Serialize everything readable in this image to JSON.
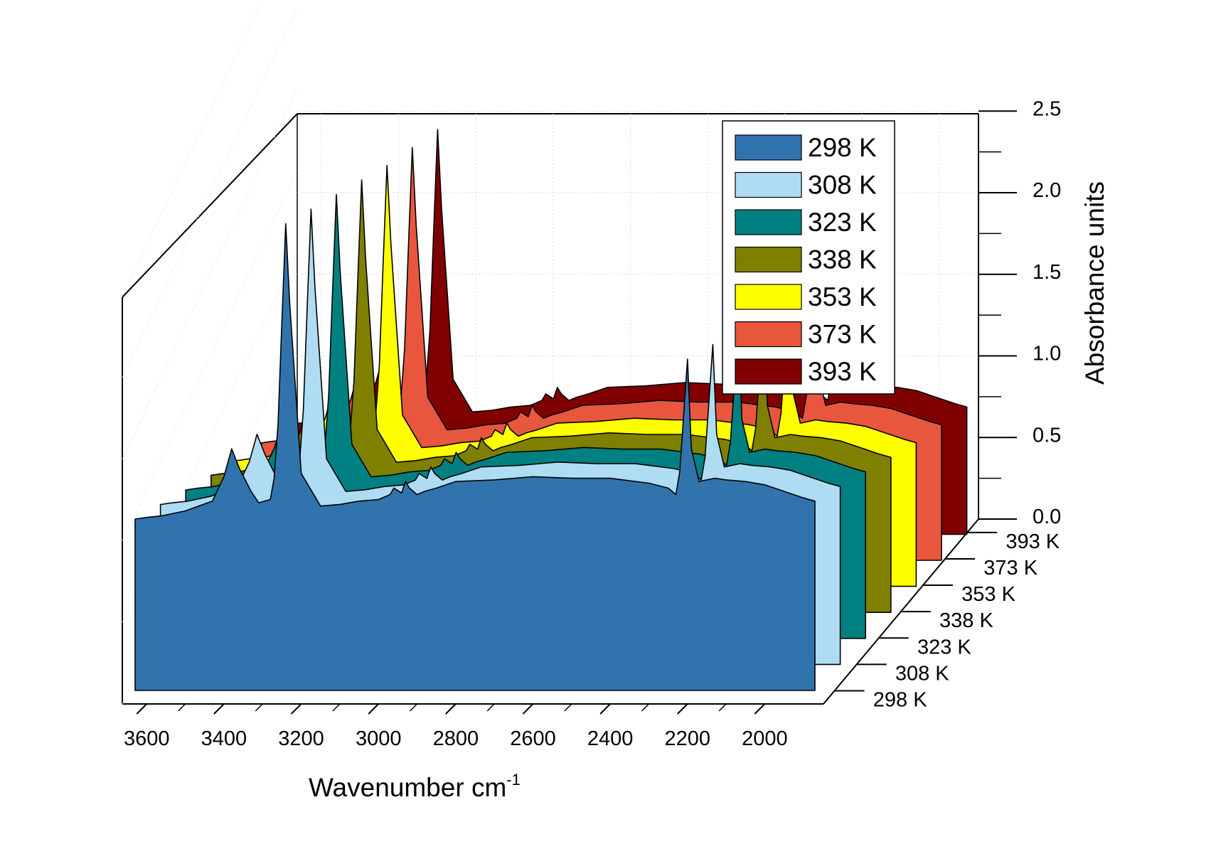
{
  "chart_data": {
    "type": "area",
    "xlabel": "Wavenumber cm",
    "xlabel_sup": "-1",
    "zlabel": "Absorbance units",
    "x_ticks": [
      3600,
      3400,
      3200,
      3000,
      2800,
      2600,
      2400,
      2200,
      2000
    ],
    "x_tick_labels": [
      "3600",
      "3400",
      "3200",
      "3000",
      "2800",
      "2600",
      "2400",
      "2200",
      "2000"
    ],
    "xlim": [
      3630,
      1870
    ],
    "x_reversed": true,
    "z_ticks": [
      0.0,
      0.5,
      1.0,
      1.5,
      2.0,
      2.5
    ],
    "z_tick_labels": [
      "0.0",
      "0.5",
      "1.0",
      "1.5",
      "2.0",
      "2.5"
    ],
    "zlim": [
      0,
      2.5
    ],
    "y_category_labels": [
      "298 K",
      "308 K",
      "323 K",
      "338 K",
      "353 K",
      "373 K",
      "393 K"
    ],
    "legend_position": "top-right",
    "grid": true,
    "series": [
      {
        "name": "298 K",
        "color": "#3174AD",
        "baseline": 0.38,
        "x": [
          3630,
          3600,
          3560,
          3500,
          3430,
          3400,
          3380,
          3360,
          3330,
          3310,
          3280,
          3270,
          3260,
          3250,
          3240,
          3230,
          3200,
          3150,
          3100,
          3050,
          3000,
          2970,
          2960,
          2940,
          2930,
          2920,
          2900,
          2880,
          2850,
          2800,
          2700,
          2600,
          2500,
          2400,
          2300,
          2250,
          2230,
          2220,
          2210,
          2200,
          2190,
          2170,
          2130,
          2100,
          2050,
          2000,
          1950,
          1900,
          1870
        ],
        "values": [
          0.67,
          0.68,
          0.69,
          0.72,
          0.78,
          0.93,
          1.1,
          0.98,
          0.84,
          0.77,
          0.79,
          0.92,
          1.25,
          1.88,
          2.48,
          2.0,
          0.95,
          0.75,
          0.76,
          0.78,
          0.79,
          0.82,
          0.86,
          0.83,
          0.9,
          0.86,
          0.82,
          0.84,
          0.86,
          0.9,
          0.91,
          0.93,
          0.92,
          0.92,
          0.89,
          0.86,
          0.82,
          0.96,
          1.3,
          1.65,
          1.1,
          0.9,
          0.92,
          0.91,
          0.9,
          0.88,
          0.84,
          0.8,
          0.78
        ]
      },
      {
        "name": "308 K",
        "color": "#AEDCF3",
        "baseline": 0.31,
        "x": [
          3630,
          3600,
          3560,
          3500,
          3430,
          3400,
          3380,
          3360,
          3330,
          3310,
          3280,
          3270,
          3260,
          3250,
          3240,
          3230,
          3200,
          3150,
          3100,
          3050,
          3000,
          2970,
          2960,
          2940,
          2930,
          2920,
          2900,
          2880,
          2850,
          2800,
          2700,
          2600,
          2500,
          2400,
          2300,
          2250,
          2230,
          2220,
          2210,
          2200,
          2190,
          2170,
          2130,
          2100,
          2050,
          2000,
          1950,
          1900,
          1870
        ],
        "values": [
          0.67,
          0.68,
          0.69,
          0.72,
          0.78,
          0.93,
          1.1,
          0.98,
          0.84,
          0.77,
          0.79,
          0.92,
          1.25,
          1.88,
          2.48,
          2.0,
          0.95,
          0.75,
          0.76,
          0.78,
          0.79,
          0.82,
          0.86,
          0.83,
          0.9,
          0.86,
          0.82,
          0.84,
          0.86,
          0.9,
          0.91,
          0.93,
          0.92,
          0.92,
          0.89,
          0.86,
          0.82,
          0.96,
          1.3,
          1.65,
          1.1,
          0.9,
          0.92,
          0.91,
          0.9,
          0.88,
          0.84,
          0.8,
          0.78
        ]
      },
      {
        "name": "323 K",
        "color": "#008080",
        "baseline": 0.24,
        "x": [
          3630,
          3600,
          3560,
          3500,
          3430,
          3400,
          3380,
          3360,
          3330,
          3310,
          3280,
          3270,
          3260,
          3250,
          3240,
          3230,
          3200,
          3150,
          3100,
          3050,
          3000,
          2970,
          2960,
          2940,
          2930,
          2920,
          2900,
          2880,
          2850,
          2800,
          2700,
          2600,
          2500,
          2400,
          2300,
          2250,
          2230,
          2220,
          2210,
          2200,
          2190,
          2170,
          2130,
          2100,
          2050,
          2000,
          1950,
          1900,
          1870
        ],
        "values": [
          0.67,
          0.68,
          0.69,
          0.72,
          0.78,
          0.93,
          1.1,
          0.98,
          0.84,
          0.77,
          0.79,
          0.92,
          1.25,
          1.88,
          2.48,
          2.0,
          0.95,
          0.75,
          0.76,
          0.78,
          0.79,
          0.82,
          0.86,
          0.83,
          0.9,
          0.86,
          0.82,
          0.84,
          0.86,
          0.9,
          0.91,
          0.93,
          0.92,
          0.92,
          0.89,
          0.86,
          0.82,
          0.96,
          1.3,
          1.65,
          1.1,
          0.9,
          0.92,
          0.91,
          0.9,
          0.88,
          0.84,
          0.8,
          0.78
        ]
      },
      {
        "name": "338 K",
        "color": "#808000",
        "baseline": 0.17,
        "x": [
          3630,
          3600,
          3560,
          3500,
          3430,
          3400,
          3380,
          3360,
          3330,
          3310,
          3280,
          3270,
          3260,
          3250,
          3240,
          3230,
          3200,
          3150,
          3100,
          3050,
          3000,
          2970,
          2960,
          2940,
          2930,
          2920,
          2900,
          2880,
          2850,
          2800,
          2700,
          2600,
          2500,
          2400,
          2300,
          2250,
          2230,
          2220,
          2210,
          2200,
          2190,
          2170,
          2130,
          2100,
          2050,
          2000,
          1950,
          1900,
          1870
        ],
        "values": [
          0.67,
          0.68,
          0.69,
          0.72,
          0.78,
          0.93,
          1.1,
          0.98,
          0.84,
          0.77,
          0.79,
          0.92,
          1.25,
          1.88,
          2.48,
          2.0,
          0.95,
          0.75,
          0.76,
          0.78,
          0.79,
          0.82,
          0.86,
          0.83,
          0.9,
          0.86,
          0.82,
          0.84,
          0.86,
          0.9,
          0.91,
          0.93,
          0.92,
          0.92,
          0.89,
          0.86,
          0.82,
          0.96,
          1.3,
          1.65,
          1.1,
          0.9,
          0.92,
          0.91,
          0.9,
          0.88,
          0.84,
          0.8,
          0.78
        ]
      },
      {
        "name": "353 K",
        "color": "#FFFF00",
        "baseline": 0.1,
        "x": [
          3630,
          3600,
          3560,
          3500,
          3430,
          3400,
          3380,
          3360,
          3330,
          3310,
          3280,
          3270,
          3260,
          3250,
          3240,
          3230,
          3200,
          3150,
          3100,
          3050,
          3000,
          2970,
          2960,
          2940,
          2930,
          2920,
          2900,
          2880,
          2850,
          2800,
          2700,
          2600,
          2500,
          2400,
          2300,
          2250,
          2230,
          2220,
          2210,
          2200,
          2190,
          2170,
          2130,
          2100,
          2050,
          2000,
          1950,
          1900,
          1870
        ],
        "values": [
          0.67,
          0.68,
          0.69,
          0.72,
          0.78,
          0.93,
          1.1,
          0.98,
          0.84,
          0.77,
          0.79,
          0.92,
          1.25,
          1.88,
          2.48,
          2.0,
          0.95,
          0.75,
          0.76,
          0.78,
          0.79,
          0.82,
          0.86,
          0.83,
          0.9,
          0.86,
          0.82,
          0.84,
          0.86,
          0.9,
          0.91,
          0.93,
          0.92,
          0.92,
          0.89,
          0.86,
          0.82,
          0.96,
          1.3,
          1.65,
          1.1,
          0.9,
          0.92,
          0.91,
          0.9,
          0.88,
          0.84,
          0.8,
          0.78
        ]
      },
      {
        "name": "373 K",
        "color": "#E8563E",
        "baseline": 0.05,
        "x": [
          3630,
          3600,
          3560,
          3500,
          3430,
          3400,
          3380,
          3360,
          3330,
          3310,
          3280,
          3270,
          3260,
          3250,
          3240,
          3230,
          3200,
          3150,
          3100,
          3050,
          3000,
          2970,
          2960,
          2940,
          2930,
          2920,
          2900,
          2880,
          2850,
          2800,
          2700,
          2600,
          2500,
          2400,
          2300,
          2250,
          2230,
          2220,
          2210,
          2200,
          2190,
          2170,
          2130,
          2100,
          2050,
          2000,
          1950,
          1900,
          1870
        ],
        "values": [
          0.67,
          0.68,
          0.69,
          0.72,
          0.78,
          0.93,
          1.1,
          0.98,
          0.84,
          0.77,
          0.79,
          0.92,
          1.25,
          1.88,
          2.48,
          2.0,
          0.95,
          0.75,
          0.76,
          0.78,
          0.79,
          0.82,
          0.86,
          0.83,
          0.9,
          0.86,
          0.82,
          0.84,
          0.86,
          0.9,
          0.91,
          0.93,
          0.92,
          0.92,
          0.89,
          0.86,
          0.82,
          0.96,
          1.3,
          1.65,
          1.1,
          0.9,
          0.92,
          0.91,
          0.9,
          0.88,
          0.84,
          0.8,
          0.78
        ]
      },
      {
        "name": "393 K",
        "color": "#800000",
        "baseline": 0.0,
        "x": [
          3630,
          3600,
          3560,
          3500,
          3430,
          3400,
          3380,
          3360,
          3330,
          3310,
          3280,
          3270,
          3260,
          3250,
          3240,
          3230,
          3200,
          3150,
          3100,
          3050,
          3000,
          2970,
          2960,
          2940,
          2930,
          2920,
          2900,
          2880,
          2850,
          2800,
          2700,
          2600,
          2500,
          2400,
          2300,
          2250,
          2230,
          2220,
          2210,
          2200,
          2190,
          2170,
          2130,
          2100,
          2050,
          2000,
          1950,
          1900,
          1870
        ],
        "values": [
          0.67,
          0.68,
          0.69,
          0.72,
          0.78,
          0.93,
          1.1,
          0.98,
          0.84,
          0.77,
          0.79,
          0.92,
          1.25,
          1.88,
          2.48,
          2.0,
          0.95,
          0.75,
          0.76,
          0.78,
          0.79,
          0.82,
          0.86,
          0.83,
          0.9,
          0.86,
          0.82,
          0.84,
          0.86,
          0.9,
          0.91,
          0.93,
          0.92,
          0.92,
          0.89,
          0.86,
          0.82,
          0.96,
          1.3,
          1.65,
          1.1,
          0.9,
          0.92,
          0.91,
          0.9,
          0.88,
          0.84,
          0.8,
          0.78
        ]
      }
    ]
  }
}
